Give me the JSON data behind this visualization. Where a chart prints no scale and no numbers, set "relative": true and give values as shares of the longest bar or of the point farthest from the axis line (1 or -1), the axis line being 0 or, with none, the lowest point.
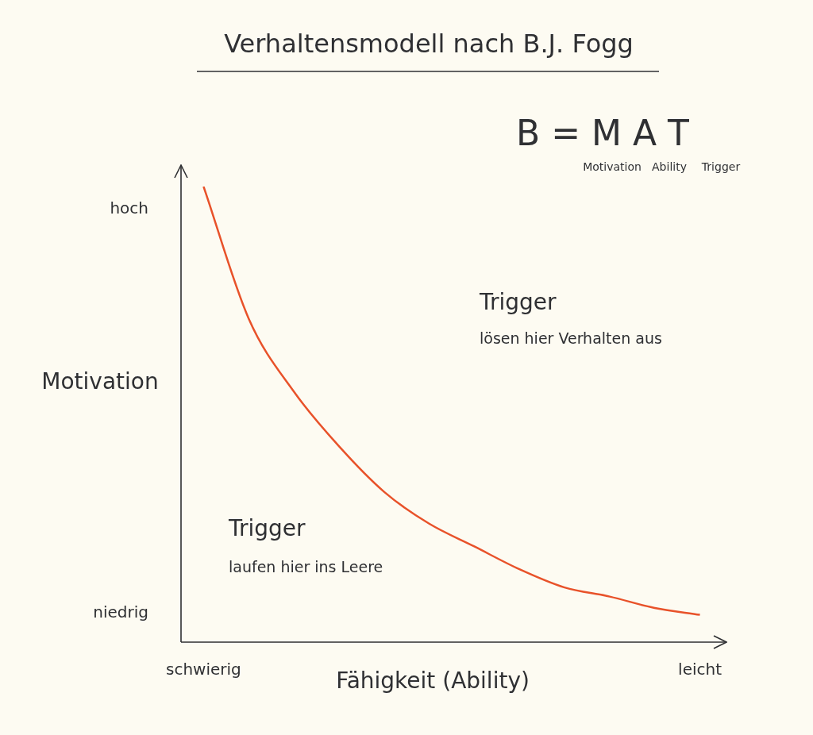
{
  "chart_data": {
    "type": "line",
    "title": "Verhaltensmodell nach B.J. Fogg",
    "xlabel": "Fähigkeit (Ability)",
    "ylabel": "Motivation",
    "relative": true,
    "categories": [
      "schwierig",
      null,
      null,
      null,
      null,
      null,
      null,
      null,
      null,
      null,
      null,
      "leicht"
    ],
    "series": [
      {
        "color": "#e8522a",
        "values": [
          1,
          0.71,
          0.55,
          0.43,
          0.33,
          0.26,
          0.21,
          0.16,
          0.12,
          0.1,
          0.075,
          0.06
        ]
      }
    ],
    "annotations": [
      "hoch",
      "niedrig",
      "Trigger",
      "lösen hier Verhalten aus",
      "Trigger",
      "laufen hier ins Leere",
      "B = M A T",
      "Motivation",
      "Ability",
      "Trigger"
    ],
    "grid": false,
    "legend": false,
    "marker": "none",
    "line_style": "solid"
  }
}
